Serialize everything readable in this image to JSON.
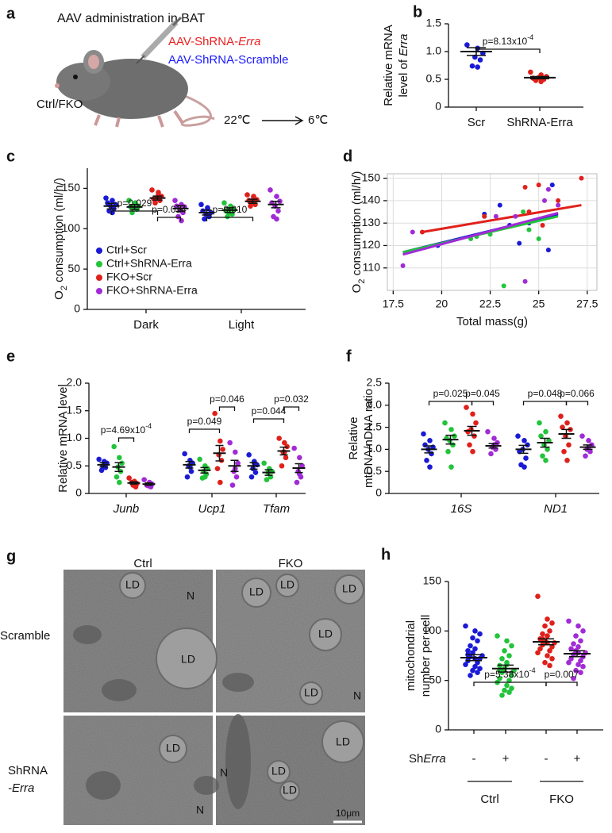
{
  "panel_a": {
    "panel": "a",
    "title": "AAV administration in BAT",
    "construct_1": [
      "AAV-ShRNA-",
      "Erra"
    ],
    "construct_2": "AAV-ShRNA-Scramble",
    "mice": "Ctrl/FKO",
    "temp_from": "22℃",
    "temp_to": "6℃"
  },
  "panel_g": {
    "panel": "g",
    "columns": [
      "Ctrl",
      "FKO"
    ],
    "rows": [
      [
        "Scramble"
      ],
      [
        "ShRNA",
        "-Erra"
      ]
    ],
    "labels": [
      "LD",
      "N",
      "LD",
      "LD",
      "LD",
      "LD",
      "LD",
      "LD",
      "N",
      "LD",
      "N",
      "N",
      "LD",
      "LD",
      "LD"
    ],
    "scale_bar": "10μm"
  },
  "chart_data": [
    {
      "panel": "b",
      "type": "dot",
      "ylabel": [
        [
          "Relative mRNA"
        ],
        [
          "level of ",
          "Erra"
        ]
      ],
      "categories": [
        "Scr",
        "ShRNA-Erra"
      ],
      "colors": [
        "#1a1ad6",
        "#e0201b"
      ],
      "points": [
        [
          1.12,
          1.06,
          0.97,
          0.9,
          0.85,
          0.74,
          0.72
        ],
        [
          0.63,
          0.58,
          0.55,
          0.53,
          0.5,
          0.48,
          0.46,
          0.52
        ]
      ],
      "means": [
        1.0,
        0.53
      ],
      "sems": [
        0.07,
        0.02
      ],
      "ylim": [
        0,
        1.5
      ],
      "yticks": [
        0,
        0.5,
        {
          "value": 1,
          "label": "1.0"
        },
        1.5
      ],
      "annotations": [
        {
          "text": "p=8.13x10",
          "sup": "-4"
        }
      ]
    },
    {
      "panel": "c",
      "type": "grouped_dot",
      "ylabel": [
        [
          "O",
          "2",
          " consumption (ml/h/)"
        ]
      ],
      "categories": [
        "Dark",
        "Light"
      ],
      "series": [
        {
          "name": "Ctrl+Scr",
          "color": "#1a1ad6",
          "points": [
            [
              138,
              135,
              130,
              128,
              125,
              122,
              120,
              132
            ],
            [
              130,
              126,
              120,
              118,
              115,
              112,
              125,
              122
            ]
          ],
          "means": [
            128,
            120
          ],
          "sems": [
            3.5,
            3
          ]
        },
        {
          "name": "Ctrl+ShRNA-Erra",
          "color": "#21c43a",
          "points": [
            [
              135,
              132,
              128,
              126,
              124,
              120,
              130,
              127
            ],
            [
              132,
              128,
              124,
              120,
              118,
              115,
              125,
              122
            ]
          ],
          "means": [
            127,
            123
          ],
          "sems": [
            3,
            3
          ]
        },
        {
          "name": "FKO+Scr",
          "color": "#e0201b",
          "points": [
            [
              148,
              145,
              140,
              138,
              135,
              132,
              142,
              137
            ],
            [
              142,
              140,
              136,
              133,
              130,
              128,
              138,
              135
            ]
          ],
          "means": [
            138,
            134
          ],
          "sems": [
            2.5,
            2.5
          ]
        },
        {
          "name": "FKO+ShRNA-Erra",
          "color": "#a12bd6",
          "points": [
            [
              135,
              130,
              127,
              124,
              120,
              115,
              110,
              128
            ],
            [
              148,
              140,
              134,
              128,
              122,
              115,
              112,
              132
            ]
          ],
          "means": [
            125,
            130
          ],
          "sems": [
            3.5,
            4
          ]
        }
      ],
      "ylim": [
        0,
        175
      ],
      "yticks": [
        0,
        50,
        100,
        150
      ],
      "legend": "lower left",
      "annotations": [
        {
          "text": "p=0.029"
        },
        {
          "text": "p=0.014"
        },
        {
          "text": "p=0.010"
        }
      ]
    },
    {
      "panel": "d",
      "type": "scatter",
      "ylabel": [
        [
          "O",
          "2",
          " consumption (ml/h/)"
        ]
      ],
      "xlabel": "Total mass(g)",
      "series": [
        {
          "color": "#1a1ad6",
          "x": [
            19.8,
            22.2,
            23,
            24,
            25.5,
            25.7,
            24.5,
            23.5
          ],
          "y": [
            120,
            134,
            138,
            121,
            118,
            147,
            130,
            129
          ],
          "fit_x": [
            18,
            26
          ],
          "fit_y": [
            117,
            134
          ]
        },
        {
          "color": "#21c43a",
          "x": [
            21.5,
            22.2,
            23.2,
            24.2,
            24.5,
            21.8,
            22.5,
            25
          ],
          "y": [
            123,
            133,
            102,
            135,
            127,
            124,
            125,
            123
          ],
          "fit_x": [
            18,
            26
          ],
          "fit_y": [
            117,
            133
          ]
        },
        {
          "color": "#e0201b",
          "x": [
            19,
            22.2,
            24.3,
            25,
            26,
            27.2,
            24.5,
            25.2
          ],
          "y": [
            126,
            133,
            146,
            147,
            140,
            150,
            135,
            129
          ],
          "fit_x": [
            19,
            27.2
          ],
          "fit_y": [
            126,
            138
          ]
        },
        {
          "color": "#a12bd6",
          "x": [
            18,
            18.5,
            24.3,
            25.5,
            26,
            25.3,
            23.8,
            22.8
          ],
          "y": [
            111,
            126,
            104,
            145,
            138,
            140,
            133,
            133
          ],
          "fit_x": [
            18,
            26
          ],
          "fit_y": [
            116,
            134.5
          ]
        }
      ],
      "xlim": [
        17.2,
        28
      ],
      "xticks": [
        17.5,
        20,
        22.5,
        25,
        27.5
      ],
      "ylim": [
        100,
        152
      ],
      "yticks": [
        110,
        120,
        130,
        140,
        150
      ],
      "grid": true
    },
    {
      "panel": "e",
      "type": "grouped_dot",
      "ylabel": [
        [
          "Relative mRNA level"
        ]
      ],
      "categories": [
        "Junb",
        "Ucp1",
        "Tfam"
      ],
      "series": [
        {
          "color": "#1a1ad6",
          "points": [
            [
              0.62,
              0.58,
              0.55,
              0.5,
              0.47,
              0.42,
              0.52
            ],
            [
              0.72,
              0.6,
              0.55,
              0.5,
              0.4,
              0.3,
              0.48
            ],
            [
              0.7,
              0.58,
              0.52,
              0.45,
              0.38,
              0.3,
              0.55
            ]
          ],
          "means": [
            0.52,
            0.52,
            0.5
          ],
          "sems": [
            0.04,
            0.06,
            0.06
          ]
        },
        {
          "color": "#21c43a",
          "points": [
            [
              0.85,
              0.65,
              0.55,
              0.48,
              0.4,
              0.3,
              0.2
            ],
            [
              0.62,
              0.5,
              0.45,
              0.4,
              0.35,
              0.28,
              0.3
            ],
            [
              0.55,
              0.45,
              0.4,
              0.38,
              0.3,
              0.25,
              0.4
            ]
          ],
          "means": [
            0.48,
            0.42,
            0.38
          ],
          "sems": [
            0.08,
            0.05,
            0.05
          ]
        },
        {
          "color": "#e0201b",
          "points": [
            [
              0.28,
              0.22,
              0.18,
              0.15,
              0.12,
              0.2
            ],
            [
              1.45,
              0.95,
              0.8,
              0.7,
              0.6,
              0.45,
              0.2
            ],
            [
              1.0,
              0.92,
              0.85,
              0.75,
              0.65,
              0.5,
              0.75
            ]
          ],
          "means": [
            0.19,
            0.73,
            0.77
          ],
          "sems": [
            0.02,
            0.14,
            0.07
          ]
        },
        {
          "color": "#a12bd6",
          "points": [
            [
              0.25,
              0.2,
              0.17,
              0.14,
              0.12,
              0.15
            ],
            [
              0.92,
              0.75,
              0.55,
              0.4,
              0.3,
              0.15,
              0.45
            ],
            [
              0.82,
              0.65,
              0.5,
              0.4,
              0.3,
              0.2,
              0.35
            ]
          ],
          "means": [
            0.17,
            0.5,
            0.46
          ],
          "sems": [
            0.02,
            0.1,
            0.08
          ]
        }
      ],
      "ylim": [
        0,
        2
      ],
      "yticks": [
        0,
        0.5,
        {
          "value": 1,
          "label": "1.0"
        },
        1.5,
        {
          "value": 2,
          "label": "2.0"
        }
      ],
      "annotations": [
        {
          "text": "p=4.69x10",
          "sup": "-4"
        },
        {
          "text": "p=0.049"
        },
        {
          "text": "p=0.046"
        },
        {
          "text": "p=0.044"
        },
        {
          "text": "p=0.032"
        }
      ]
    },
    {
      "panel": "f",
      "type": "grouped_dot",
      "ylabel": [
        [
          "Relative"
        ],
        [
          "mtDNA/nDNA ratio"
        ]
      ],
      "categories": [
        "16S",
        "ND1"
      ],
      "series": [
        {
          "color": "#1a1ad6",
          "points": [
            [
              1.35,
              1.2,
              1.05,
              1.0,
              0.9,
              0.75,
              0.6,
              1.1
            ],
            [
              1.3,
              1.2,
              1.1,
              1.0,
              0.8,
              0.65,
              0.6,
              0.95
            ]
          ],
          "means": [
            1.0,
            1.0
          ],
          "sems": [
            0.08,
            0.09
          ]
        },
        {
          "color": "#21c43a",
          "points": [
            [
              1.6,
              1.45,
              1.3,
              1.2,
              1.1,
              0.95,
              0.6,
              1.25
            ],
            [
              1.6,
              1.4,
              1.2,
              1.1,
              1.0,
              0.85,
              0.75,
              1.3
            ]
          ],
          "means": [
            1.22,
            1.15
          ],
          "sems": [
            0.1,
            0.1
          ]
        },
        {
          "color": "#e0201b",
          "points": [
            [
              1.95,
              1.8,
              1.6,
              1.45,
              1.3,
              1.1,
              0.95,
              1.4
            ],
            [
              1.75,
              1.6,
              1.45,
              1.3,
              1.1,
              0.95,
              0.75,
              1.5
            ]
          ],
          "means": [
            1.42,
            1.35
          ],
          "sems": [
            0.1,
            0.1
          ]
        },
        {
          "color": "#a12bd6",
          "points": [
            [
              1.4,
              1.25,
              1.15,
              1.05,
              1.0,
              0.9,
              1.1
            ],
            [
              1.3,
              1.2,
              1.1,
              1.0,
              0.95,
              0.85,
              1.05
            ]
          ],
          "means": [
            1.08,
            1.05
          ],
          "sems": [
            0.05,
            0.05
          ]
        }
      ],
      "ylim": [
        0,
        2.5
      ],
      "yticks": [
        0,
        0.5,
        {
          "value": 1,
          "label": "1.0"
        },
        1.5,
        {
          "value": 2,
          "label": "2.0"
        },
        2.5
      ],
      "annotations": [
        {
          "text": "p=0.025"
        },
        {
          "text": "p=0.045"
        },
        {
          "text": "p=0.048"
        },
        {
          "text": "p=0.066"
        }
      ]
    },
    {
      "panel": "h",
      "type": "dot",
      "ylabel": [
        [
          "mitochondrial"
        ],
        [
          "number per cell"
        ]
      ],
      "categories": [
        "-",
        "+",
        "-",
        "+"
      ],
      "colors": [
        "#1a1ad6",
        "#21c43a",
        "#e0201b",
        "#a12bd6"
      ],
      "points": [
        [
          105,
          100,
          97,
          93,
          90,
          85,
          82,
          80,
          78,
          75,
          74,
          72,
          70,
          68,
          66,
          64,
          62,
          60,
          58,
          55,
          72,
          76
        ],
        [
          95,
          90,
          85,
          80,
          75,
          72,
          68,
          65,
          62,
          60,
          58,
          55,
          52,
          50,
          48,
          45,
          42,
          40,
          38,
          35,
          66,
          60
        ],
        [
          135,
          112,
          108,
          105,
          100,
          97,
          95,
          92,
          90,
          88,
          86,
          84,
          82,
          80,
          78,
          75,
          72,
          68,
          65,
          92,
          88
        ],
        [
          110,
          105,
          100,
          95,
          90,
          87,
          84,
          82,
          80,
          78,
          76,
          74,
          72,
          70,
          68,
          66,
          64,
          60,
          58,
          52,
          78
        ]
      ],
      "means": [
        73,
        62,
        89,
        77
      ],
      "sems": [
        3,
        3.5,
        3,
        3
      ],
      "ylim": [
        0,
        150
      ],
      "yticks": [
        0,
        50,
        100,
        150
      ],
      "row_label": [
        "Sh",
        "Erra"
      ],
      "groups": [
        "Ctrl",
        "FKO"
      ],
      "annotations": [
        {
          "text": "p=5.38x10",
          "sup": "-4"
        },
        {
          "text": "p=0.007"
        }
      ]
    }
  ]
}
